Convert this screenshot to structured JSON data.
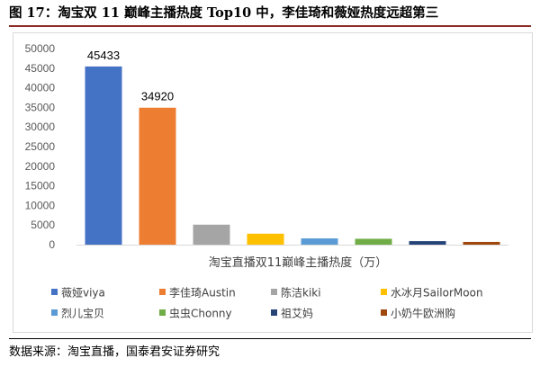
{
  "figure": {
    "title": "图 17：淘宝双 11 巅峰主播热度 Top10 中，李佳琦和薇娅热度远超第三",
    "source": "数据来源：淘宝直播，国泰君安证券研究"
  },
  "chart_data": {
    "type": "bar",
    "xlabel": "淘宝直播双11巅峰主播热度（万）",
    "ylabel": "",
    "ylim": [
      0,
      50000
    ],
    "yticks": [
      0,
      5000,
      10000,
      15000,
      20000,
      25000,
      30000,
      35000,
      40000,
      45000,
      50000
    ],
    "grid": false,
    "legend_position": "bottom",
    "series": [
      {
        "name": "薇娅viya",
        "value": 45433,
        "color": "#4472C4",
        "label": "45433"
      },
      {
        "name": "李佳琦Austin",
        "value": 34920,
        "color": "#ED7D31",
        "label": "34920"
      },
      {
        "name": "陈洁kiki",
        "value": 5100,
        "color": "#A5A5A5"
      },
      {
        "name": "水冰月SailorMoon",
        "value": 2800,
        "color": "#FFC000"
      },
      {
        "name": "烈儿宝贝",
        "value": 1600,
        "color": "#5B9BD5"
      },
      {
        "name": "虫虫Chonny",
        "value": 1500,
        "color": "#70AD47"
      },
      {
        "name": "祖艾妈",
        "value": 900,
        "color": "#264478"
      },
      {
        "name": "小奶牛欧洲购",
        "value": 700,
        "color": "#9E480E"
      }
    ]
  }
}
